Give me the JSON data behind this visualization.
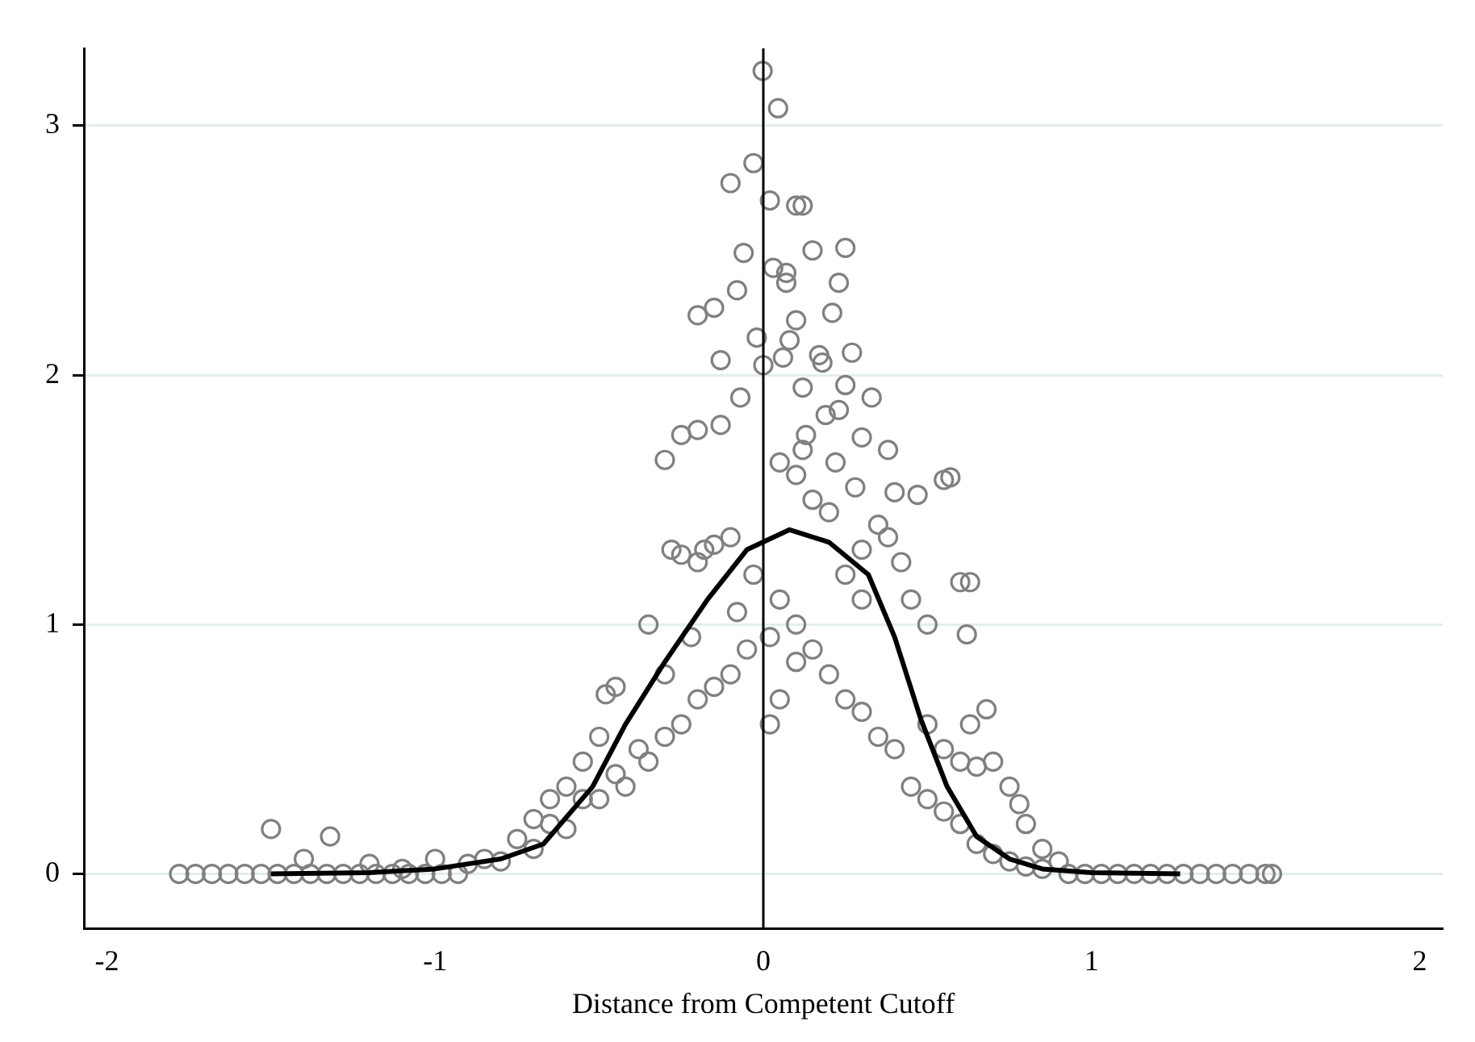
{
  "chart_data": {
    "type": "scatter",
    "xlabel": "Distance from Competent Cutoff",
    "xlim": [
      -2.07,
      2.07
    ],
    "xticks": [
      -2,
      -1,
      0,
      1,
      2
    ],
    "ylim": [
      -0.22,
      3.31
    ],
    "yticks": [
      0,
      1,
      2,
      3
    ],
    "grid": "y",
    "legend": false,
    "marker": "circle",
    "ref_lines": [
      {
        "axis": "x",
        "value": 0,
        "color": "#000000"
      }
    ],
    "series": [
      {
        "color": "#808080",
        "x": [
          -1.78,
          -1.73,
          -1.68,
          -1.63,
          -1.58,
          -1.53,
          -1.48,
          -1.43,
          -1.38,
          -1.33,
          -1.28,
          -1.23,
          -1.18,
          -1.13,
          -1.08,
          -1.03,
          -0.98,
          -0.93,
          0.93,
          0.98,
          1.03,
          1.08,
          1.13,
          1.18,
          1.23,
          1.28,
          1.33,
          1.38,
          1.43,
          1.48,
          1.53,
          1.55,
          -0.002,
          0.045,
          -0.03,
          -0.1,
          0.02,
          0.1,
          0.12,
          -0.06,
          0.15,
          0.25,
          0.03,
          0.07,
          0.07,
          -0.08,
          0.23,
          -0.15,
          -0.2,
          0.21,
          0.1,
          -0.02,
          0.08,
          -0.13,
          0.0,
          0.06,
          0.17,
          0.18,
          0.27,
          0.12,
          0.25,
          0.33,
          -0.07,
          -0.13,
          -0.2,
          -0.25,
          -0.3,
          0.23,
          0.19,
          0.13,
          0.3,
          0.38,
          0.55,
          0.57,
          0.47,
          0.4,
          0.6,
          0.63,
          0.62,
          -1.5,
          -1.32,
          -1.4,
          -1.2,
          -1.1,
          -1.0,
          -0.9,
          -0.85,
          -0.8,
          -0.75,
          -0.7,
          -0.65,
          -0.6,
          -0.55,
          -0.5,
          -0.45,
          -0.42,
          -0.38,
          -0.35,
          -0.3,
          -0.25,
          -0.2,
          -0.15,
          -0.1,
          -0.05,
          -0.35,
          -0.28,
          -0.25,
          -0.18,
          -0.15,
          -0.1,
          -0.2,
          -0.45,
          -0.48,
          -0.5,
          -0.55,
          -0.6,
          -0.65,
          -0.7,
          -0.3,
          -0.22,
          -0.08,
          -0.03,
          0.02,
          0.05,
          0.1,
          0.02,
          0.05,
          0.1,
          0.15,
          0.2,
          0.25,
          0.3,
          0.35,
          0.4,
          0.45,
          0.5,
          0.55,
          0.6,
          0.65,
          0.7,
          0.75,
          0.8,
          0.85,
          0.5,
          0.55,
          0.6,
          0.7,
          0.75,
          0.78,
          0.8,
          0.85,
          0.9,
          0.68,
          0.63,
          0.65,
          0.3,
          0.35,
          0.38,
          0.42,
          0.45,
          0.5,
          0.3,
          0.25,
          0.2,
          0.15,
          0.1,
          0.28,
          0.22,
          0.12,
          0.05
        ],
        "values": [
          0,
          0,
          0,
          0,
          0,
          0,
          0,
          0,
          0,
          0,
          0,
          0,
          0,
          0,
          0,
          0,
          0,
          0,
          0,
          0,
          0,
          0,
          0,
          0,
          0,
          0,
          0,
          0,
          0,
          0,
          0,
          0,
          3.22,
          3.07,
          2.85,
          2.77,
          2.7,
          2.68,
          2.68,
          2.49,
          2.5,
          2.51,
          2.43,
          2.41,
          2.37,
          2.34,
          2.37,
          2.27,
          2.24,
          2.25,
          2.22,
          2.15,
          2.14,
          2.06,
          2.04,
          2.07,
          2.08,
          2.05,
          2.09,
          1.95,
          1.96,
          1.91,
          1.91,
          1.8,
          1.78,
          1.76,
          1.66,
          1.86,
          1.84,
          1.76,
          1.75,
          1.7,
          1.58,
          1.59,
          1.52,
          1.53,
          1.17,
          1.17,
          0.96,
          0.18,
          0.15,
          0.06,
          0.04,
          0.02,
          0.06,
          0.04,
          0.06,
          0.05,
          0.14,
          0.1,
          0.2,
          0.18,
          0.3,
          0.3,
          0.4,
          0.35,
          0.5,
          0.45,
          0.55,
          0.6,
          0.7,
          0.75,
          0.8,
          0.9,
          1.0,
          1.3,
          1.28,
          1.3,
          1.32,
          1.35,
          1.25,
          0.75,
          0.72,
          0.55,
          0.45,
          0.35,
          0.3,
          0.22,
          0.8,
          0.95,
          1.05,
          1.2,
          0.6,
          0.7,
          0.85,
          0.95,
          1.1,
          1.0,
          0.9,
          0.8,
          0.7,
          0.65,
          0.55,
          0.5,
          0.35,
          0.3,
          0.25,
          0.2,
          0.12,
          0.08,
          0.05,
          0.03,
          0.02,
          0.6,
          0.5,
          0.45,
          0.45,
          0.35,
          0.28,
          0.2,
          0.1,
          0.05,
          0.66,
          0.6,
          0.43,
          1.3,
          1.4,
          1.35,
          1.25,
          1.1,
          1.0,
          1.1,
          1.2,
          1.45,
          1.5,
          1.6,
          1.55,
          1.65,
          1.7,
          1.65
        ]
      },
      {
        "type": "line",
        "marker": "none",
        "color": "#000000",
        "x": [
          -1.5,
          -1.2,
          -1.0,
          -0.8,
          -0.67,
          -0.52,
          -0.42,
          -0.3,
          -0.17,
          -0.05,
          0.08,
          0.2,
          0.32,
          0.4,
          0.48,
          0.56,
          0.65,
          0.75,
          0.85,
          1.0,
          1.27
        ],
        "values": [
          0,
          0.005,
          0.02,
          0.06,
          0.12,
          0.35,
          0.6,
          0.85,
          1.1,
          1.3,
          1.38,
          1.33,
          1.2,
          0.95,
          0.62,
          0.35,
          0.15,
          0.06,
          0.02,
          0.005,
          0
        ]
      }
    ]
  }
}
